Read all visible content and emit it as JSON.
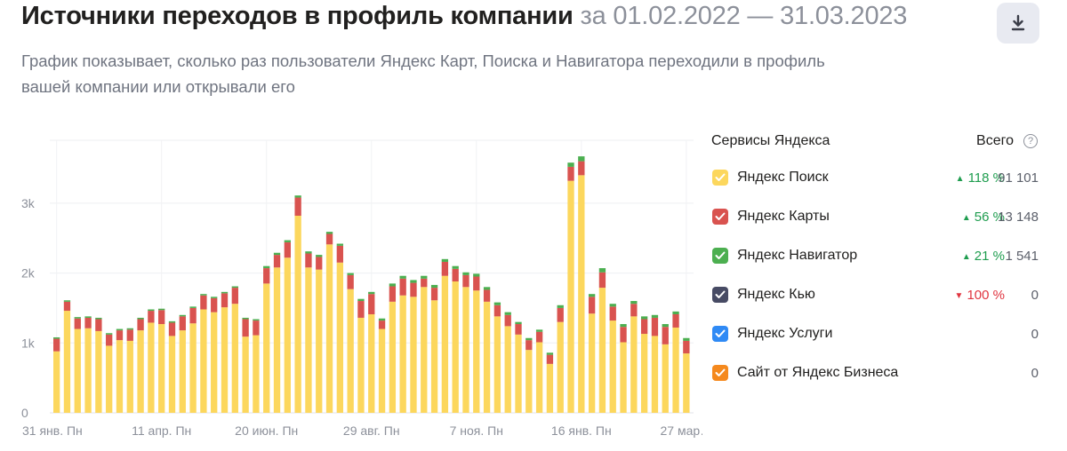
{
  "header": {
    "title": "Источники переходов в профиль компании",
    "period": "за 01.02.2022 — 31.03.2023",
    "subtitle": "График показывает, сколько раз пользователи Яндекс Карт, Поиска и Навигатора переходили в профиль вашей компании или открывали его"
  },
  "download_icon": "download-icon",
  "legend": {
    "services_label": "Сервисы Яндекса",
    "total_label": "Всего",
    "help_icon": "help-icon",
    "help_glyph": "?",
    "items": [
      {
        "label": "Яндекс Поиск",
        "color": "#fcd75d",
        "direction": "up",
        "arrow": "▲",
        "change": "118 %",
        "total": "91 101"
      },
      {
        "label": "Яндекс Карты",
        "color": "#d9534f",
        "direction": "up",
        "arrow": "▲",
        "change": "56 %",
        "total": "13 148"
      },
      {
        "label": "Яндекс Навигатор",
        "color": "#4caf50",
        "direction": "up",
        "arrow": "▲",
        "change": "21 %",
        "total": "1 541"
      },
      {
        "label": "Яндекс Кью",
        "color": "#474b64",
        "direction": "down",
        "arrow": "▼",
        "change": "100 %",
        "total": "0"
      },
      {
        "label": "Яндекс Услуги",
        "color": "#2f8af5",
        "direction": "",
        "arrow": "",
        "change": "",
        "total": "0"
      },
      {
        "label": "Сайт от Яндекс Бизнеса",
        "color": "#f5891d",
        "direction": "",
        "arrow": "",
        "change": "",
        "total": "0"
      }
    ]
  },
  "chart_data": {
    "type": "bar",
    "stacked": true,
    "ylim": [
      0,
      3900
    ],
    "y_ticks": [
      0,
      1000,
      2000,
      3000
    ],
    "y_tick_labels": [
      "0",
      "1k",
      "2k",
      "3k"
    ],
    "x_tick_labels": [
      "31 янв. Пн",
      "11 апр. Пн",
      "20 июн. Пн",
      "29 авг. Пн",
      "7 ноя. Пн",
      "16 янв. Пн",
      "27 мар…"
    ],
    "x_tick_indices": [
      0,
      10,
      20,
      30,
      40,
      50,
      60
    ],
    "grid": true,
    "series": [
      {
        "name": "Яндекс Поиск",
        "color": "#fcd75d",
        "values": [
          880,
          1460,
          1200,
          1210,
          1170,
          960,
          1040,
          1030,
          1180,
          1290,
          1270,
          1100,
          1180,
          1280,
          1480,
          1440,
          1510,
          1560,
          1090,
          1110,
          1850,
          2080,
          2220,
          2820,
          2080,
          2050,
          2410,
          2150,
          1770,
          1360,
          1410,
          1200,
          1590,
          1680,
          1660,
          1800,
          1610,
          1960,
          1880,
          1800,
          1750,
          1590,
          1380,
          1240,
          1120,
          900,
          1010,
          700,
          1300,
          3320,
          3400,
          1420,
          1790,
          1320,
          1010,
          1380,
          1130,
          1100,
          980,
          1220,
          850
        ]
      },
      {
        "name": "Яндекс Карты",
        "color": "#d9534f",
        "values": [
          180,
          130,
          150,
          150,
          170,
          160,
          140,
          160,
          160,
          170,
          200,
          190,
          200,
          220,
          200,
          200,
          200,
          230,
          250,
          210,
          220,
          180,
          220,
          260,
          200,
          180,
          150,
          240,
          200,
          240,
          290,
          120,
          220,
          240,
          200,
          120,
          180,
          200,
          180,
          170,
          200,
          170,
          160,
          160,
          150,
          140,
          150,
          130,
          200,
          200,
          200,
          240,
          220,
          200,
          220,
          180,
          210,
          260,
          250,
          190,
          180
        ]
      },
      {
        "name": "Яндекс Навигатор",
        "color": "#4caf50",
        "values": [
          20,
          20,
          20,
          20,
          20,
          20,
          20,
          20,
          20,
          20,
          20,
          20,
          20,
          20,
          20,
          20,
          20,
          20,
          20,
          20,
          30,
          30,
          30,
          30,
          30,
          30,
          30,
          30,
          30,
          30,
          30,
          30,
          40,
          40,
          40,
          40,
          40,
          40,
          40,
          40,
          40,
          40,
          40,
          40,
          30,
          30,
          30,
          30,
          40,
          60,
          70,
          40,
          60,
          40,
          40,
          40,
          40,
          40,
          40,
          40,
          40
        ]
      },
      {
        "name": "Яндекс Кью",
        "color": "#474b64",
        "values": [
          0,
          0,
          0,
          0,
          0,
          0,
          0,
          0,
          0,
          0,
          0,
          0,
          0,
          0,
          0,
          0,
          0,
          0,
          0,
          0,
          0,
          0,
          0,
          0,
          0,
          0,
          0,
          0,
          0,
          0,
          0,
          0,
          0,
          0,
          0,
          0,
          0,
          0,
          0,
          0,
          0,
          0,
          0,
          0,
          0,
          0,
          0,
          0,
          0,
          0,
          0,
          0,
          0,
          0,
          0,
          0,
          0,
          0,
          0,
          0,
          0
        ]
      },
      {
        "name": "Яндекс Услуги",
        "color": "#2f8af5",
        "values": [
          0,
          0,
          0,
          0,
          0,
          0,
          0,
          0,
          0,
          0,
          0,
          0,
          0,
          0,
          0,
          0,
          0,
          0,
          0,
          0,
          0,
          0,
          0,
          0,
          0,
          0,
          0,
          0,
          0,
          0,
          0,
          0,
          0,
          0,
          0,
          0,
          0,
          0,
          0,
          0,
          0,
          0,
          0,
          0,
          0,
          0,
          0,
          0,
          0,
          0,
          0,
          0,
          0,
          0,
          0,
          0,
          0,
          0,
          0,
          0,
          0
        ]
      },
      {
        "name": "Сайт от Яндекс Бизнеса",
        "color": "#f5891d",
        "values": [
          0,
          0,
          0,
          0,
          0,
          0,
          0,
          0,
          0,
          0,
          0,
          0,
          0,
          0,
          0,
          0,
          0,
          0,
          0,
          0,
          0,
          0,
          0,
          0,
          0,
          0,
          0,
          0,
          0,
          0,
          0,
          0,
          0,
          0,
          0,
          0,
          0,
          0,
          0,
          0,
          0,
          0,
          0,
          0,
          0,
          0,
          0,
          0,
          0,
          0,
          0,
          0,
          0,
          0,
          0,
          0,
          0,
          0,
          0,
          0,
          0
        ]
      }
    ]
  }
}
